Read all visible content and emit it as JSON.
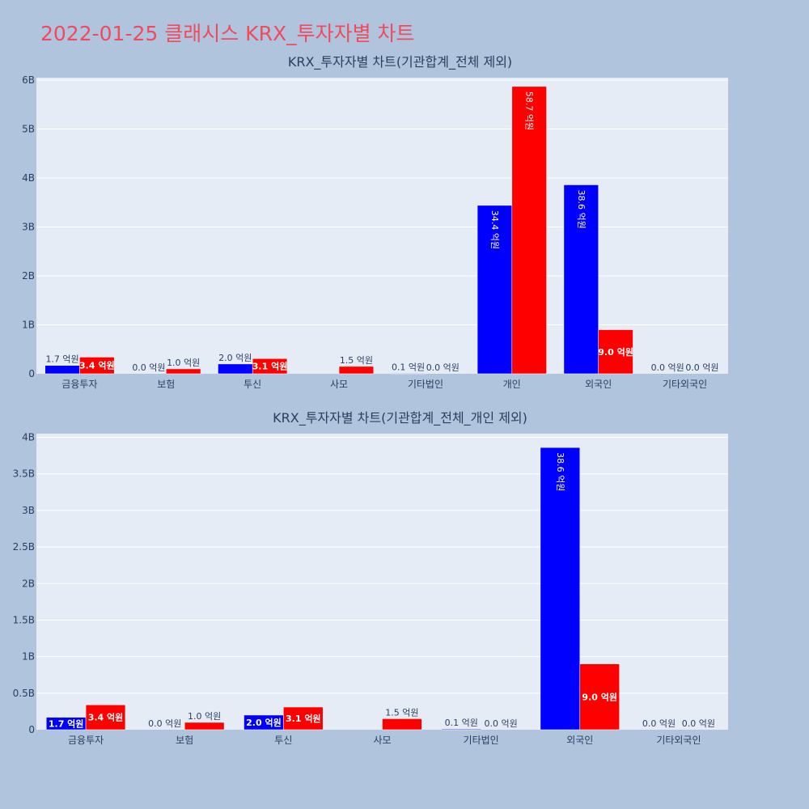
{
  "page": {
    "title": "2022-01-25 클래시스 KRX_투자자별 차트",
    "background": "#b0c4de",
    "title_color": "#ef4b5c"
  },
  "colors": {
    "plot_bg": "#e5ecf6",
    "grid": "#ffffff",
    "text": "#2a3f5f"
  },
  "chart_data": [
    {
      "type": "bar",
      "title": "KRX_투자자별 차트(기관합계_전체 제외)",
      "categories": [
        "금융투자",
        "보험",
        "투신",
        "사모",
        "기타법인",
        "개인",
        "외국인",
        "기타외국인"
      ],
      "ylim": [
        0,
        6.05
      ],
      "yticks": [
        0,
        1,
        2,
        3,
        4,
        5,
        6
      ],
      "ytick_labels": [
        "0",
        "1B",
        "2B",
        "3B",
        "4B",
        "5B",
        "6B"
      ],
      "grid": true,
      "series": [
        {
          "color": "#0000ff",
          "values": [
            0.17,
            0.0,
            0.2,
            null,
            0.01,
            3.44,
            3.86,
            0.0
          ],
          "labels": [
            "1.7 억원",
            "0.0 억원",
            "2.0 억원",
            "",
            "0.1 억원",
            "34.4 억원",
            "38.6 억원",
            "0.0 억원"
          ]
        },
        {
          "color": "#ff0000",
          "values": [
            0.34,
            0.1,
            0.31,
            0.15,
            0.0,
            5.87,
            0.9,
            0.0
          ],
          "labels": [
            "3.4 억원",
            "1.0 억원",
            "3.1 억원",
            "1.5 억원",
            "0.0 억원",
            "58.7 억원",
            "9.0 억원",
            "0.0 억원"
          ]
        }
      ]
    },
    {
      "type": "bar",
      "title": "KRX_투자자별 차트(기관합계_전체_개인 제외)",
      "categories": [
        "금융투자",
        "보험",
        "투신",
        "사모",
        "기타법인",
        "외국인",
        "기타외국인"
      ],
      "ylim": [
        0,
        4.05
      ],
      "yticks": [
        0,
        0.5,
        1,
        1.5,
        2,
        2.5,
        3,
        3.5,
        4
      ],
      "ytick_labels": [
        "0",
        "0.5B",
        "1B",
        "1.5B",
        "2B",
        "2.5B",
        "3B",
        "3.5B",
        "4B"
      ],
      "grid": true,
      "series": [
        {
          "color": "#0000ff",
          "values": [
            0.17,
            0.0,
            0.2,
            null,
            0.01,
            3.86,
            0.0
          ],
          "labels": [
            "1.7 억원",
            "0.0 억원",
            "2.0 억원",
            "",
            "0.1 억원",
            "38.6 억원",
            "0.0 억원"
          ]
        },
        {
          "color": "#ff0000",
          "values": [
            0.34,
            0.1,
            0.31,
            0.15,
            0.0,
            0.9,
            0.0
          ],
          "labels": [
            "3.4 억원",
            "1.0 억원",
            "3.1 억원",
            "1.5 억원",
            "0.0 억원",
            "9.0 억원",
            "0.0 억원"
          ]
        }
      ]
    }
  ]
}
